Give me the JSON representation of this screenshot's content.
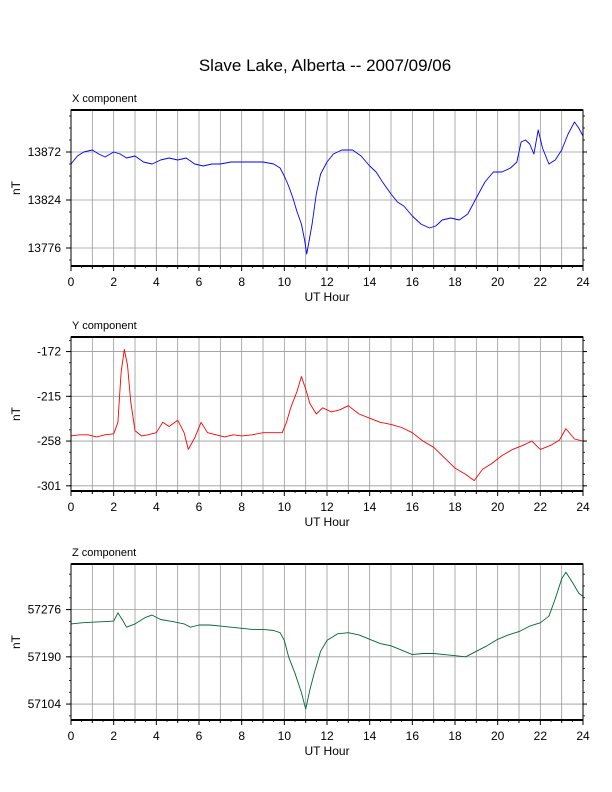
{
  "title": "Slave Lake, Alberta -- 2007/09/06",
  "chart_data": [
    {
      "type": "line",
      "panel_label": "X component",
      "xlabel": "UT Hour",
      "ylabel": "nT",
      "xlim": [
        0,
        24
      ],
      "ylim": [
        13758,
        13914
      ],
      "x_ticks": [
        0,
        2,
        4,
        6,
        8,
        10,
        12,
        14,
        16,
        18,
        20,
        22,
        24
      ],
      "y_ticks": [
        13776,
        13824,
        13872
      ],
      "grid": true,
      "color": "#0000ff",
      "points": [
        [
          0,
          13860
        ],
        [
          0.3,
          13868
        ],
        [
          0.6,
          13872
        ],
        [
          1,
          13874
        ],
        [
          1.3,
          13870
        ],
        [
          1.6,
          13867
        ],
        [
          2,
          13872
        ],
        [
          2.3,
          13870
        ],
        [
          2.6,
          13866
        ],
        [
          3,
          13868
        ],
        [
          3.4,
          13862
        ],
        [
          3.8,
          13860
        ],
        [
          4.2,
          13864
        ],
        [
          4.6,
          13866
        ],
        [
          5,
          13864
        ],
        [
          5.4,
          13866
        ],
        [
          5.8,
          13860
        ],
        [
          6.2,
          13858
        ],
        [
          6.6,
          13860
        ],
        [
          7,
          13860
        ],
        [
          7.5,
          13862
        ],
        [
          8,
          13862
        ],
        [
          8.5,
          13862
        ],
        [
          9,
          13862
        ],
        [
          9.5,
          13860
        ],
        [
          9.8,
          13856
        ],
        [
          10,
          13848
        ],
        [
          10.2,
          13838
        ],
        [
          10.4,
          13826
        ],
        [
          10.6,
          13812
        ],
        [
          10.8,
          13800
        ],
        [
          10.95,
          13784
        ],
        [
          11.05,
          13770
        ],
        [
          11.15,
          13782
        ],
        [
          11.3,
          13800
        ],
        [
          11.5,
          13830
        ],
        [
          11.7,
          13850
        ],
        [
          12,
          13862
        ],
        [
          12.3,
          13870
        ],
        [
          12.7,
          13874
        ],
        [
          13.2,
          13874
        ],
        [
          13.6,
          13868
        ],
        [
          14,
          13858
        ],
        [
          14.3,
          13852
        ],
        [
          14.6,
          13842
        ],
        [
          15,
          13830
        ],
        [
          15.3,
          13822
        ],
        [
          15.6,
          13818
        ],
        [
          16,
          13808
        ],
        [
          16.4,
          13800
        ],
        [
          16.8,
          13796
        ],
        [
          17.1,
          13798
        ],
        [
          17.4,
          13804
        ],
        [
          17.8,
          13806
        ],
        [
          18.2,
          13804
        ],
        [
          18.6,
          13810
        ],
        [
          19,
          13826
        ],
        [
          19.4,
          13842
        ],
        [
          19.8,
          13852
        ],
        [
          20.2,
          13852
        ],
        [
          20.6,
          13856
        ],
        [
          20.9,
          13862
        ],
        [
          21.1,
          13882
        ],
        [
          21.3,
          13884
        ],
        [
          21.5,
          13880
        ],
        [
          21.7,
          13870
        ],
        [
          21.9,
          13894
        ],
        [
          22.1,
          13876
        ],
        [
          22.4,
          13860
        ],
        [
          22.7,
          13864
        ],
        [
          23,
          13874
        ],
        [
          23.3,
          13890
        ],
        [
          23.6,
          13902
        ],
        [
          23.8,
          13896
        ],
        [
          24,
          13888
        ]
      ]
    },
    {
      "type": "line",
      "panel_label": "Y component",
      "xlabel": "UT Hour",
      "ylabel": "nT",
      "xlim": [
        0,
        24
      ],
      "ylim": [
        -306,
        -158
      ],
      "x_ticks": [
        0,
        2,
        4,
        6,
        8,
        10,
        12,
        14,
        16,
        18,
        20,
        22,
        24
      ],
      "y_ticks": [
        -301,
        -258,
        -215,
        -172
      ],
      "grid": true,
      "color": "#ff0000",
      "points": [
        [
          0,
          -253
        ],
        [
          0.4,
          -252
        ],
        [
          0.8,
          -252
        ],
        [
          1.2,
          -254
        ],
        [
          1.6,
          -252
        ],
        [
          2,
          -251
        ],
        [
          2.2,
          -240
        ],
        [
          2.35,
          -192
        ],
        [
          2.5,
          -170
        ],
        [
          2.65,
          -185
        ],
        [
          2.8,
          -220
        ],
        [
          3,
          -248
        ],
        [
          3.3,
          -253
        ],
        [
          3.6,
          -252
        ],
        [
          4,
          -250
        ],
        [
          4.3,
          -240
        ],
        [
          4.6,
          -244
        ],
        [
          5,
          -238
        ],
        [
          5.3,
          -250
        ],
        [
          5.5,
          -266
        ],
        [
          5.8,
          -255
        ],
        [
          6.1,
          -240
        ],
        [
          6.4,
          -250
        ],
        [
          6.8,
          -252
        ],
        [
          7.2,
          -254
        ],
        [
          7.6,
          -252
        ],
        [
          8,
          -253
        ],
        [
          8.5,
          -252
        ],
        [
          9,
          -250
        ],
        [
          9.5,
          -250
        ],
        [
          9.9,
          -250
        ],
        [
          10.1,
          -240
        ],
        [
          10.3,
          -226
        ],
        [
          10.6,
          -210
        ],
        [
          10.8,
          -196
        ],
        [
          11,
          -208
        ],
        [
          11.2,
          -222
        ],
        [
          11.5,
          -232
        ],
        [
          11.8,
          -226
        ],
        [
          12.2,
          -230
        ],
        [
          12.6,
          -228
        ],
        [
          13,
          -224
        ],
        [
          13.5,
          -232
        ],
        [
          14,
          -236
        ],
        [
          14.5,
          -240
        ],
        [
          15,
          -242
        ],
        [
          15.5,
          -245
        ],
        [
          16,
          -250
        ],
        [
          16.5,
          -258
        ],
        [
          17,
          -264
        ],
        [
          17.5,
          -274
        ],
        [
          18,
          -284
        ],
        [
          18.5,
          -290
        ],
        [
          18.9,
          -296
        ],
        [
          19.3,
          -285
        ],
        [
          19.7,
          -280
        ],
        [
          20.2,
          -272
        ],
        [
          20.7,
          -266
        ],
        [
          21.2,
          -262
        ],
        [
          21.6,
          -258
        ],
        [
          22,
          -266
        ],
        [
          22.5,
          -262
        ],
        [
          22.9,
          -257
        ],
        [
          23.2,
          -246
        ],
        [
          23.6,
          -256
        ],
        [
          24,
          -258
        ]
      ]
    },
    {
      "type": "line",
      "panel_label": "Z component",
      "xlabel": "UT Hour",
      "ylabel": "nT",
      "xlim": [
        0,
        24
      ],
      "ylim": [
        57075,
        57359
      ],
      "x_ticks": [
        0,
        2,
        4,
        6,
        8,
        10,
        12,
        14,
        16,
        18,
        20,
        22,
        24
      ],
      "y_ticks": [
        57104,
        57190,
        57276
      ],
      "grid": true,
      "color": "#006633",
      "points": [
        [
          0,
          57250
        ],
        [
          0.5,
          57252
        ],
        [
          1,
          57253
        ],
        [
          1.5,
          57254
        ],
        [
          2,
          57255
        ],
        [
          2.2,
          57270
        ],
        [
          2.4,
          57258
        ],
        [
          2.6,
          57244
        ],
        [
          3,
          57250
        ],
        [
          3.5,
          57262
        ],
        [
          3.8,
          57266
        ],
        [
          4.2,
          57258
        ],
        [
          4.8,
          57254
        ],
        [
          5.3,
          57250
        ],
        [
          5.6,
          57244
        ],
        [
          6,
          57248
        ],
        [
          6.5,
          57248
        ],
        [
          7,
          57246
        ],
        [
          7.5,
          57244
        ],
        [
          8,
          57242
        ],
        [
          8.5,
          57240
        ],
        [
          9,
          57240
        ],
        [
          9.5,
          57238
        ],
        [
          9.8,
          57234
        ],
        [
          10,
          57220
        ],
        [
          10.2,
          57190
        ],
        [
          10.5,
          57160
        ],
        [
          10.8,
          57125
        ],
        [
          11,
          57095
        ],
        [
          11.2,
          57130
        ],
        [
          11.4,
          57160
        ],
        [
          11.7,
          57200
        ],
        [
          12,
          57220
        ],
        [
          12.5,
          57232
        ],
        [
          13,
          57234
        ],
        [
          13.5,
          57230
        ],
        [
          14,
          57222
        ],
        [
          14.5,
          57214
        ],
        [
          15,
          57210
        ],
        [
          15.5,
          57202
        ],
        [
          16,
          57194
        ],
        [
          16.5,
          57196
        ],
        [
          17,
          57196
        ],
        [
          17.5,
          57194
        ],
        [
          18,
          57192
        ],
        [
          18.5,
          57190
        ],
        [
          19,
          57200
        ],
        [
          19.5,
          57210
        ],
        [
          20,
          57222
        ],
        [
          20.5,
          57230
        ],
        [
          21,
          57236
        ],
        [
          21.5,
          57246
        ],
        [
          22,
          57252
        ],
        [
          22.4,
          57264
        ],
        [
          22.7,
          57296
        ],
        [
          23,
          57332
        ],
        [
          23.2,
          57344
        ],
        [
          23.5,
          57326
        ],
        [
          23.8,
          57306
        ],
        [
          24,
          57300
        ]
      ]
    }
  ]
}
